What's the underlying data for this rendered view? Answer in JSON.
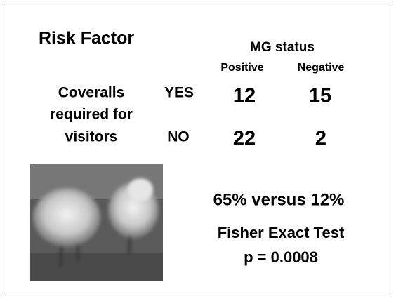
{
  "header": {
    "title": "Risk Factor",
    "column_group": "MG status",
    "columns": [
      "Positive",
      "Negative"
    ]
  },
  "table": {
    "row_label": [
      "Coveralls",
      "required for",
      "visitors"
    ],
    "rows": [
      {
        "label": "YES",
        "values": [
          12,
          15
        ]
      },
      {
        "label": "NO",
        "values": [
          22,
          2
        ]
      }
    ]
  },
  "result": {
    "comparison": "65% versus 12%",
    "test": "Fisher Exact Test",
    "p_value": "p = 0.0008"
  }
}
